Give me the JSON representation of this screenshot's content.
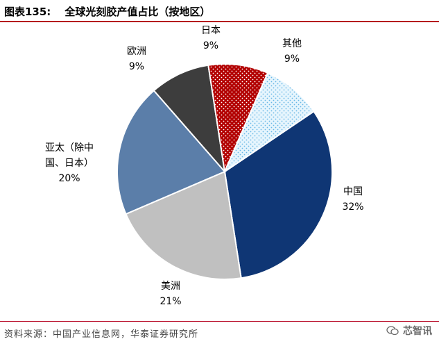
{
  "header": {
    "figure_number": "图表135:",
    "title": "全球光刻胶产值占比（按地区）"
  },
  "footer": {
    "source": "资料来源：中国产业信息网，华泰证券研究所",
    "watermark": "芯智讯"
  },
  "colors": {
    "rule": "#b5001e",
    "china": "#0f3674",
    "us": "#c0c0c0",
    "asia_pacific": "#5b7ea9",
    "europe": "#3d3d3d",
    "japan": "#b20000",
    "others": "#bfe3f7"
  },
  "chart_data": {
    "type": "pie",
    "start_angle_deg": 56,
    "direction": "clockwise",
    "slices": [
      {
        "name": "中国",
        "value": 32,
        "label": "中国",
        "pct": "32%",
        "color": "#0f3674",
        "pattern": "none"
      },
      {
        "name": "美洲",
        "value": 21,
        "label": "美洲",
        "pct": "21%",
        "color": "#c0c0c0",
        "pattern": "none"
      },
      {
        "name": "亚太（除中国、日本）",
        "value": 20,
        "label_lines": [
          "亚太（除中",
          "国、日本）"
        ],
        "pct": "20%",
        "color": "#5b7ea9",
        "pattern": "none"
      },
      {
        "name": "欧洲",
        "value": 9,
        "label": "欧洲",
        "pct": "9%",
        "color": "#3d3d3d",
        "pattern": "none"
      },
      {
        "name": "日本",
        "value": 9,
        "label": "日本",
        "pct": "9%",
        "color": "#b20000",
        "pattern": "white-dots"
      },
      {
        "name": "其他",
        "value": 9,
        "label": "其他",
        "pct": "9%",
        "color": "#bfe3f7",
        "pattern": "blue-dots"
      }
    ]
  }
}
